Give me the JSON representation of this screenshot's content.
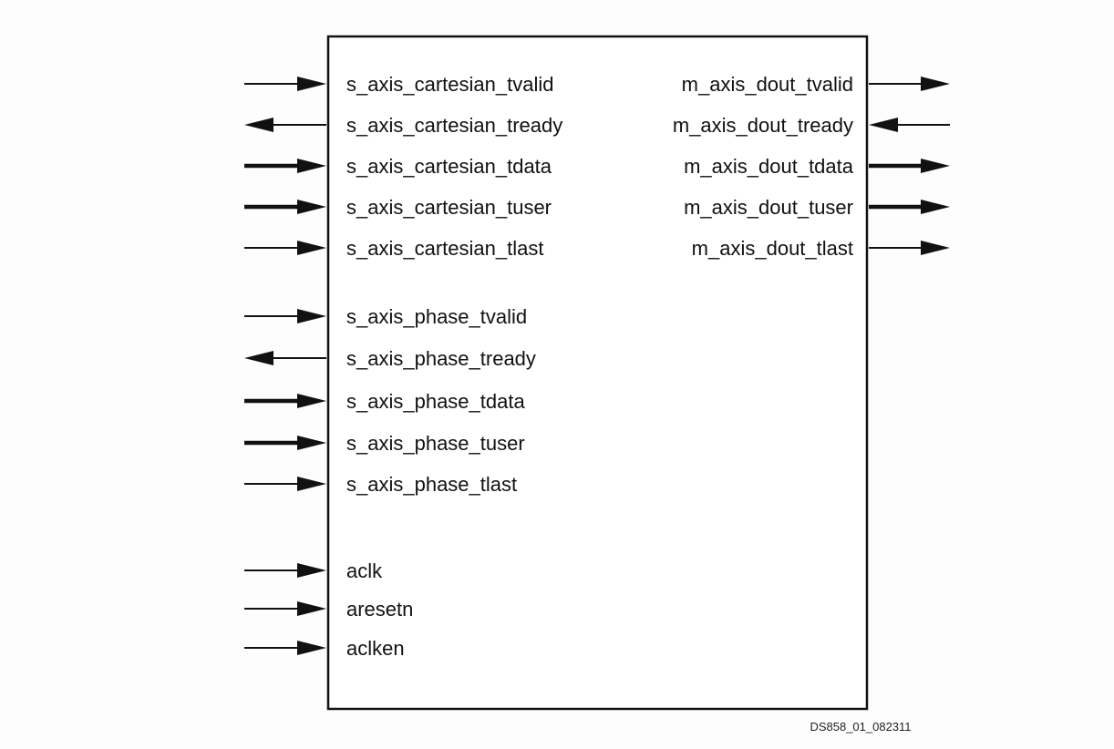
{
  "left_ports": [
    {
      "name": "s_axis_cartesian_tvalid",
      "direction": "in",
      "bus": false
    },
    {
      "name": "s_axis_cartesian_tready",
      "direction": "out",
      "bus": false
    },
    {
      "name": "s_axis_cartesian_tdata",
      "direction": "in",
      "bus": true
    },
    {
      "name": "s_axis_cartesian_tuser",
      "direction": "in",
      "bus": true
    },
    {
      "name": "s_axis_cartesian_tlast",
      "direction": "in",
      "bus": false
    },
    {
      "name": "s_axis_phase_tvalid",
      "direction": "in",
      "bus": false
    },
    {
      "name": "s_axis_phase_tready",
      "direction": "out",
      "bus": false
    },
    {
      "name": "s_axis_phase_tdata",
      "direction": "in",
      "bus": true
    },
    {
      "name": "s_axis_phase_tuser",
      "direction": "in",
      "bus": true
    },
    {
      "name": "s_axis_phase_tlast",
      "direction": "in",
      "bus": false
    },
    {
      "name": "aclk",
      "direction": "in",
      "bus": false
    },
    {
      "name": "aresetn",
      "direction": "in",
      "bus": false
    },
    {
      "name": "aclken",
      "direction": "in",
      "bus": false
    }
  ],
  "right_ports": [
    {
      "name": "m_axis_dout_tvalid",
      "direction": "out",
      "bus": false
    },
    {
      "name": "m_axis_dout_tready",
      "direction": "in",
      "bus": false
    },
    {
      "name": "m_axis_dout_tdata",
      "direction": "out",
      "bus": true
    },
    {
      "name": "m_axis_dout_tuser",
      "direction": "out",
      "bus": true
    },
    {
      "name": "m_axis_dout_tlast",
      "direction": "out",
      "bus": false
    }
  ],
  "figure_id": "DS858_01_082311"
}
